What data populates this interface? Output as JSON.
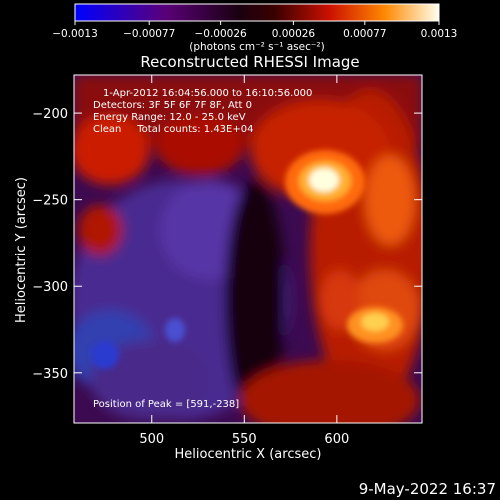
{
  "chart_data": {
    "type": "heatmap",
    "title": "Reconstructed RHESSI Image",
    "xlabel": "Heliocentric X (arcsec)",
    "ylabel": "Heliocentric Y (arcsec)",
    "xlim": [
      458,
      646
    ],
    "ylim": [
      -379,
      -178
    ],
    "x_ticks": [
      500,
      550,
      600
    ],
    "y_ticks": [
      -200,
      -250,
      -300,
      -350
    ],
    "colorbar": {
      "ticks": [
        -0.0013,
        -0.00077,
        -0.00026,
        0.00026,
        0.00077,
        0.0013
      ],
      "tick_labels": [
        "-0.0013",
        "-0.00077",
        "-0.00026",
        "0.00026",
        "0.00077",
        "0.0013"
      ],
      "units_label": "(photons cm⁻² s⁻¹ asec⁻²)",
      "range": [
        -0.0013,
        0.0013
      ]
    },
    "annotations": [
      "1-Apr-2012 16:04:56.000 to 16:10:56.000",
      "Detectors: 3F 5F 6F 7F 8F, Att 0",
      "Energy Range: 12.0 - 25.0 keV",
      "Clean     Total counts: 1.43E+04",
      "Position of Peak = [591,-238]"
    ],
    "peak": {
      "x": 591,
      "y": -238
    }
  },
  "footer_date": "9-May-2022 16:37"
}
